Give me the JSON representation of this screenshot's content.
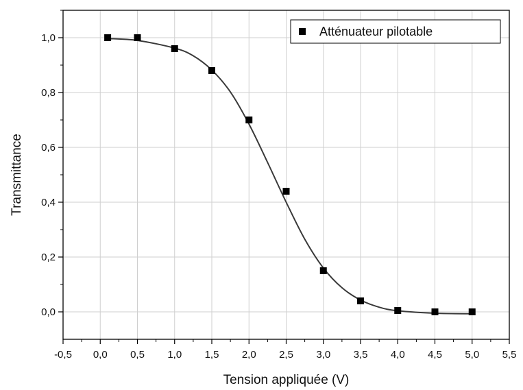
{
  "chart_data": {
    "type": "scatter",
    "title": "",
    "xlabel": "Tension appliquée (V)",
    "ylabel": "Transmittance",
    "xlim": [
      -0.5,
      5.5
    ],
    "ylim": [
      -0.1,
      1.1
    ],
    "grid": true,
    "legend_position": "top-right",
    "x_ticks": [
      -0.5,
      0.0,
      0.5,
      1.0,
      1.5,
      2.0,
      2.5,
      3.0,
      3.5,
      4.0,
      4.5,
      5.0,
      5.5
    ],
    "x_tick_labels": [
      "-0,5",
      "0,0",
      "0,5",
      "1,0",
      "1,5",
      "2,0",
      "2,5",
      "3,0",
      "3,5",
      "4,0",
      "4,5",
      "5,0",
      "5,5"
    ],
    "y_ticks": [
      0.0,
      0.2,
      0.4,
      0.6,
      0.8,
      1.0
    ],
    "y_tick_labels": [
      "0,0",
      "0,2",
      "0,4",
      "0,6",
      "0,8",
      "1,0"
    ],
    "series": [
      {
        "name": "Atténuateur pilotable",
        "marker": "square",
        "color": "#000000",
        "x": [
          0.1,
          0.5,
          1.0,
          1.5,
          2.0,
          2.5,
          3.0,
          3.5,
          4.0,
          4.5,
          5.0
        ],
        "y": [
          1.0,
          1.0,
          0.96,
          0.88,
          0.7,
          0.44,
          0.15,
          0.04,
          0.005,
          0.0,
          0.0
        ]
      }
    ],
    "fit_curve": {
      "color": "#3a3a3a",
      "x": [
        0.1,
        0.5,
        1.0,
        1.25,
        1.5,
        1.75,
        2.0,
        2.25,
        2.5,
        2.75,
        3.0,
        3.25,
        3.5,
        3.75,
        4.0,
        4.5,
        5.0
      ],
      "y": [
        0.997,
        0.99,
        0.962,
        0.934,
        0.882,
        0.802,
        0.685,
        0.545,
        0.4,
        0.265,
        0.16,
        0.088,
        0.043,
        0.017,
        0.004,
        -0.005,
        -0.007
      ]
    }
  }
}
